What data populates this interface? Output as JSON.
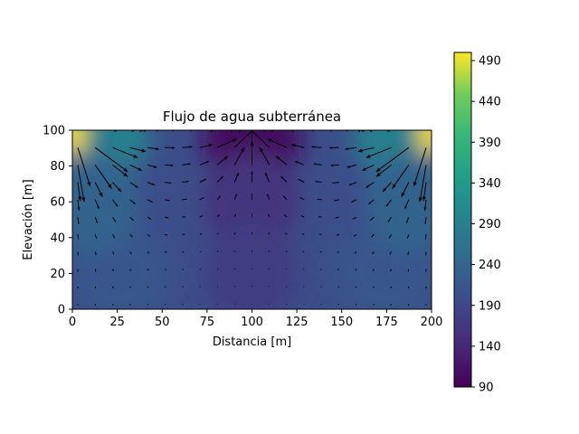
{
  "chart_data": {
    "type": "heatmap",
    "subtype": "filled-contour with quiver arrows",
    "title": "Flujo de agua subterránea",
    "xlabel": "Distancia [m]",
    "ylabel": "Elevación [m]",
    "xlim": [
      0,
      200
    ],
    "ylim": [
      0,
      100
    ],
    "xticks": [
      0,
      25,
      50,
      75,
      100,
      125,
      150,
      175,
      200
    ],
    "yticks": [
      0,
      20,
      40,
      60,
      80,
      100
    ],
    "grid": false,
    "colormap": "viridis",
    "colorbar": {
      "range": [
        90,
        500
      ],
      "ticks": [
        90,
        140,
        190,
        240,
        290,
        340,
        390,
        440,
        490
      ]
    },
    "field_samples": [
      {
        "x": 2,
        "y": 98,
        "value": 500
      },
      {
        "x": 198,
        "y": 98,
        "value": 500
      },
      {
        "x": 25,
        "y": 95,
        "value": 290
      },
      {
        "x": 175,
        "y": 95,
        "value": 290
      },
      {
        "x": 100,
        "y": 95,
        "value": 105
      },
      {
        "x": 100,
        "y": 60,
        "value": 160
      },
      {
        "x": 100,
        "y": 20,
        "value": 175
      },
      {
        "x": 25,
        "y": 20,
        "value": 215
      },
      {
        "x": 175,
        "y": 20,
        "value": 215
      },
      {
        "x": 10,
        "y": 60,
        "value": 235
      },
      {
        "x": 190,
        "y": 60,
        "value": 235
      }
    ]
  }
}
